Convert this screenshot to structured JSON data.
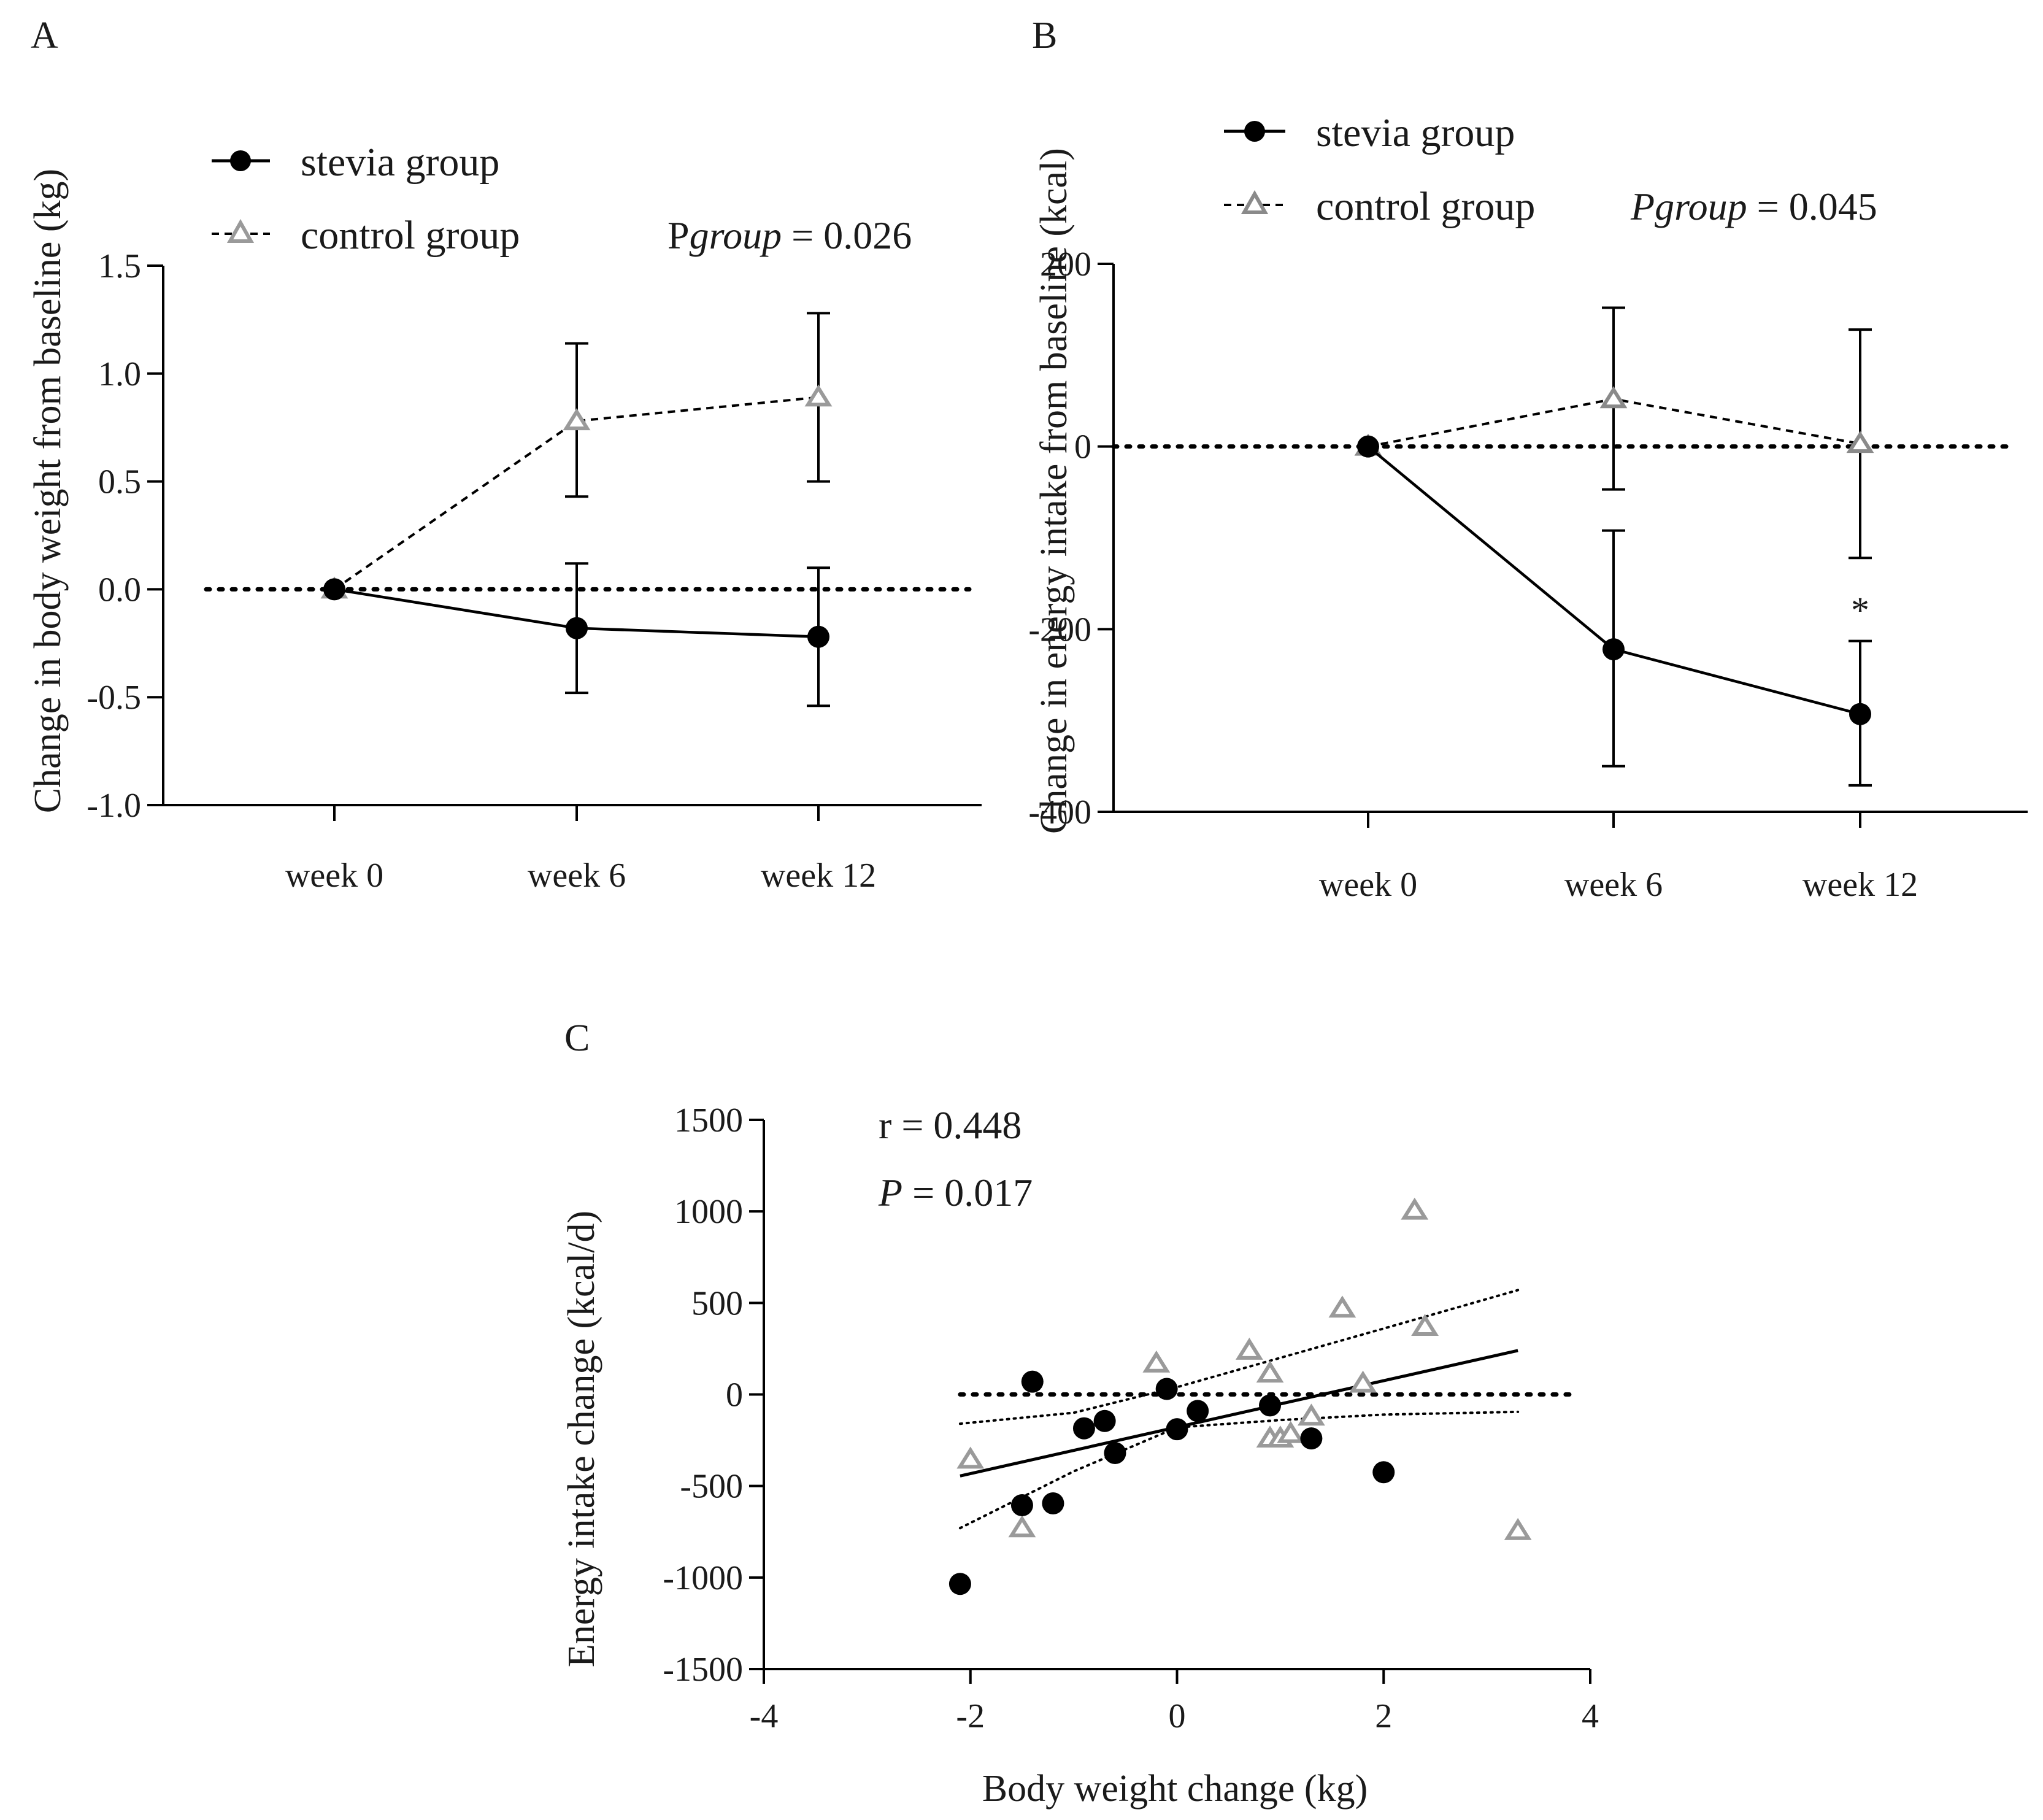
{
  "chart_data": [
    {
      "panel": "A",
      "type": "line",
      "ylabel": "Change in body weight from baseline (kg)",
      "xlabel": "",
      "categories": [
        "week 0",
        "week 6",
        "week 12"
      ],
      "ylim": [
        -1.0,
        1.5
      ],
      "yticks": [
        -1.0,
        -0.5,
        0.0,
        0.5,
        1.0,
        1.5
      ],
      "ytick_labels": [
        "-1.0",
        "-0.5",
        "0.0",
        "0.5",
        "1.0",
        "1.5"
      ],
      "reference_line": 0,
      "series": [
        {
          "name": "stevia group",
          "marker": "circle",
          "line": "solid",
          "color": "#000000",
          "values": [
            0,
            -0.18,
            -0.22
          ],
          "err_low": [
            0,
            -0.48,
            -0.54
          ],
          "err_high": [
            0,
            0.12,
            0.1
          ]
        },
        {
          "name": "control group",
          "marker": "triangle",
          "line": "dashed",
          "color": "#9a9a9a",
          "values": [
            0,
            0.78,
            0.89
          ],
          "err_low": [
            0,
            0.43,
            0.5
          ],
          "err_high": [
            0,
            1.14,
            1.28
          ]
        }
      ],
      "annotation": {
        "prefix": "P",
        "italic": "group",
        "suffix": " = 0.026"
      },
      "legend_position": "top-left"
    },
    {
      "panel": "B",
      "type": "line",
      "ylabel": "Change in energy intake from baseline (kcal)",
      "xlabel": "",
      "categories": [
        "week 0",
        "week 6",
        "week 12"
      ],
      "ylim": [
        -400,
        200
      ],
      "yticks": [
        -400,
        -200,
        0,
        200
      ],
      "ytick_labels": [
        "-400",
        "-200",
        "0",
        "200"
      ],
      "reference_line": 0,
      "series": [
        {
          "name": "stevia group",
          "marker": "circle",
          "line": "solid",
          "color": "#000000",
          "values": [
            0,
            -222,
            -293
          ],
          "err_low": [
            0,
            -350,
            -371
          ],
          "err_high": [
            0,
            -92,
            -213
          ]
        },
        {
          "name": "control group",
          "marker": "triangle",
          "line": "dashed",
          "color": "#8a8a8a",
          "values": [
            0,
            52,
            3
          ],
          "err_low": [
            0,
            -47,
            -122
          ],
          "err_high": [
            0,
            152,
            128
          ]
        }
      ],
      "significance": {
        "category": "week 12",
        "label": "*"
      },
      "annotation": {
        "prefix": "",
        "italic": "Pgroup",
        "suffix": " = 0.045"
      },
      "legend_position": "top-left"
    },
    {
      "panel": "C",
      "type": "scatter",
      "xlabel": "Body weight change (kg)",
      "ylabel": "Energy intake change (kcal/d)",
      "xlim": [
        -4,
        4
      ],
      "ylim": [
        -1500,
        1500
      ],
      "xticks": [
        -4,
        -2,
        0,
        2,
        4
      ],
      "xtick_labels": [
        "-4",
        "-2",
        "0",
        "2",
        "4"
      ],
      "yticks": [
        -1500,
        -1000,
        -500,
        0,
        500,
        1000,
        1500
      ],
      "ytick_labels": [
        "-1500",
        "-1000",
        "-500",
        "0",
        "500",
        "1000",
        "1500"
      ],
      "reference_line": 0,
      "series": [
        {
          "name": "stevia group",
          "marker": "circle",
          "color": "#000000",
          "x": [
            -2.1,
            -1.5,
            -1.4,
            -1.2,
            -0.9,
            -0.7,
            -0.6,
            -0.1,
            0.0,
            0.2,
            0.9,
            1.3,
            2.0
          ],
          "y": [
            -1035,
            -605,
            70,
            -595,
            -185,
            -145,
            -320,
            30,
            -190,
            -90,
            -60,
            -240,
            -425
          ]
        },
        {
          "name": "control group",
          "marker": "triangle",
          "color": "#9a9a9a",
          "x": [
            -2.0,
            -1.5,
            -0.2,
            0.7,
            0.9,
            0.9,
            1.0,
            1.1,
            1.3,
            1.6,
            1.8,
            2.3,
            2.4,
            3.3
          ],
          "y": [
            -355,
            -730,
            170,
            240,
            115,
            -240,
            -240,
            -215,
            -120,
            470,
            60,
            1005,
            370,
            -745
          ]
        }
      ],
      "fit": {
        "x": [
          -2.1,
          3.3
        ],
        "y": [
          -445,
          240
        ]
      },
      "confidence_band": {
        "x": [
          -2.1,
          -1.0,
          0.0,
          1.0,
          2.0,
          3.3
        ],
        "upper": [
          -160,
          -100,
          40,
          200,
          360,
          570
        ],
        "lower": [
          -730,
          -420,
          -180,
          -140,
          -110,
          -95
        ]
      },
      "annotation": {
        "r_text": "r = 0.448",
        "p_prefix": "P",
        "p_suffix": " = 0.017"
      }
    }
  ]
}
